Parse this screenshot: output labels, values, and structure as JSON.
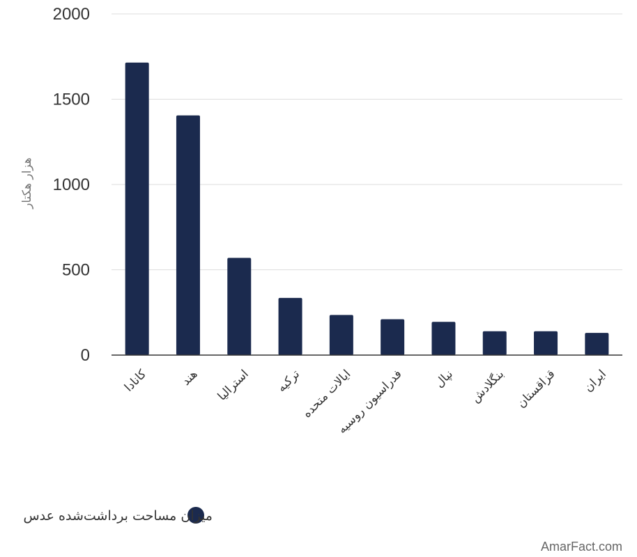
{
  "chart_data": {
    "type": "bar",
    "categories": [
      "کانادا",
      "هند",
      "استرالیا",
      "ترکیه",
      "ایالات متحده",
      "فدراسیون روسیه",
      "نپال",
      "بنگلادش",
      "قزاقستان",
      "ایران"
    ],
    "series": [
      {
        "name": "میزان مساحت برداشت‌شده عدس",
        "values": [
          1715,
          1405,
          570,
          335,
          235,
          210,
          195,
          140,
          140,
          130
        ]
      }
    ],
    "ylabel": "هزار هکتار",
    "ylim": [
      0,
      2000
    ],
    "yticks": [
      "0",
      "500",
      "1000",
      "1500",
      "2000"
    ],
    "grid": true,
    "legend_position": "bottom",
    "colors": {
      "bar": "#1b2a4e",
      "grid": "#dddddd",
      "axis": "#333333"
    }
  },
  "watermark": "AmarFact.com"
}
